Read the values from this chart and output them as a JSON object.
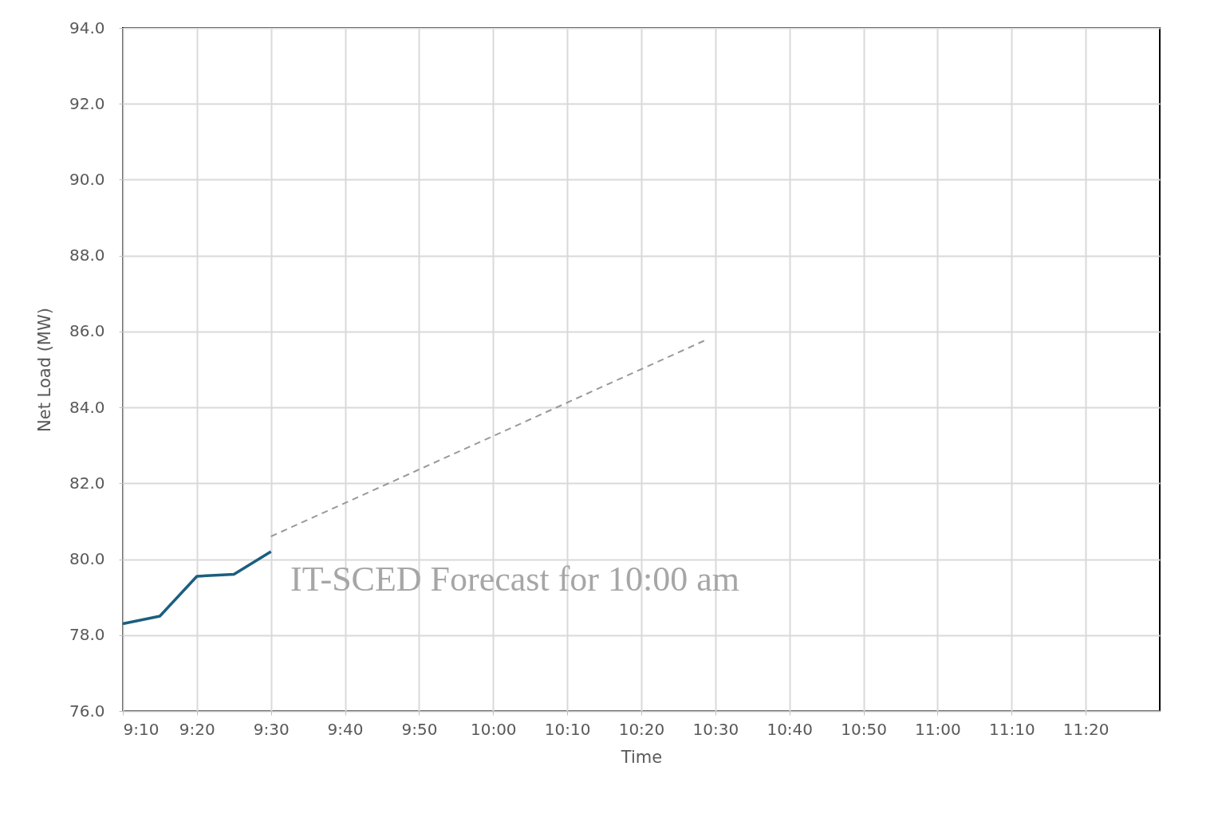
{
  "chart_data": {
    "type": "line",
    "xlabel": "Time",
    "ylabel": "Net Load (MW)",
    "xlim": [
      9.1667,
      11.5
    ],
    "ylim": [
      76,
      94
    ],
    "xticks": [
      {
        "value": 9.1667,
        "label": "9:10"
      },
      {
        "value": 9.3333,
        "label": "9:20"
      },
      {
        "value": 9.5,
        "label": "9:30"
      },
      {
        "value": 9.6667,
        "label": "9:40"
      },
      {
        "value": 9.8333,
        "label": "9:50"
      },
      {
        "value": 10,
        "label": "10:00"
      },
      {
        "value": 10.1667,
        "label": "10:10"
      },
      {
        "value": 10.3333,
        "label": "10:20"
      },
      {
        "value": 10.5,
        "label": "10:30"
      },
      {
        "value": 10.6667,
        "label": "10:40"
      },
      {
        "value": 10.8333,
        "label": "10:50"
      },
      {
        "value": 11,
        "label": "11:00"
      },
      {
        "value": 11.1667,
        "label": "11:10"
      },
      {
        "value": 11.3333,
        "label": "11:20"
      }
    ],
    "yticks": [
      {
        "value": 76,
        "label": "76.0"
      },
      {
        "value": 78,
        "label": "78.0"
      },
      {
        "value": 80,
        "label": "80.0"
      },
      {
        "value": 82,
        "label": "82.0"
      },
      {
        "value": 84,
        "label": "84.0"
      },
      {
        "value": 86,
        "label": "86.0"
      },
      {
        "value": 88,
        "label": "88.0"
      },
      {
        "value": 90,
        "label": "90.0"
      },
      {
        "value": 92,
        "label": "92.0"
      },
      {
        "value": 94,
        "label": "94.0"
      }
    ],
    "grid": true,
    "marker": "none",
    "series": [
      {
        "color": "#1b5e80",
        "line_style": "solid",
        "x": [
          9.1667,
          9.25,
          9.3333,
          9.4167,
          9.5
        ],
        "values": [
          78.3,
          78.5,
          79.55,
          79.6,
          80.2
        ]
      },
      {
        "color": "#999999",
        "line_style": "dashed",
        "x": [
          9.5,
          10.483
        ],
        "values": [
          80.6,
          85.8
        ]
      }
    ],
    "annotations": [
      "IT-SCED Forecast for 10:00 am"
    ]
  }
}
